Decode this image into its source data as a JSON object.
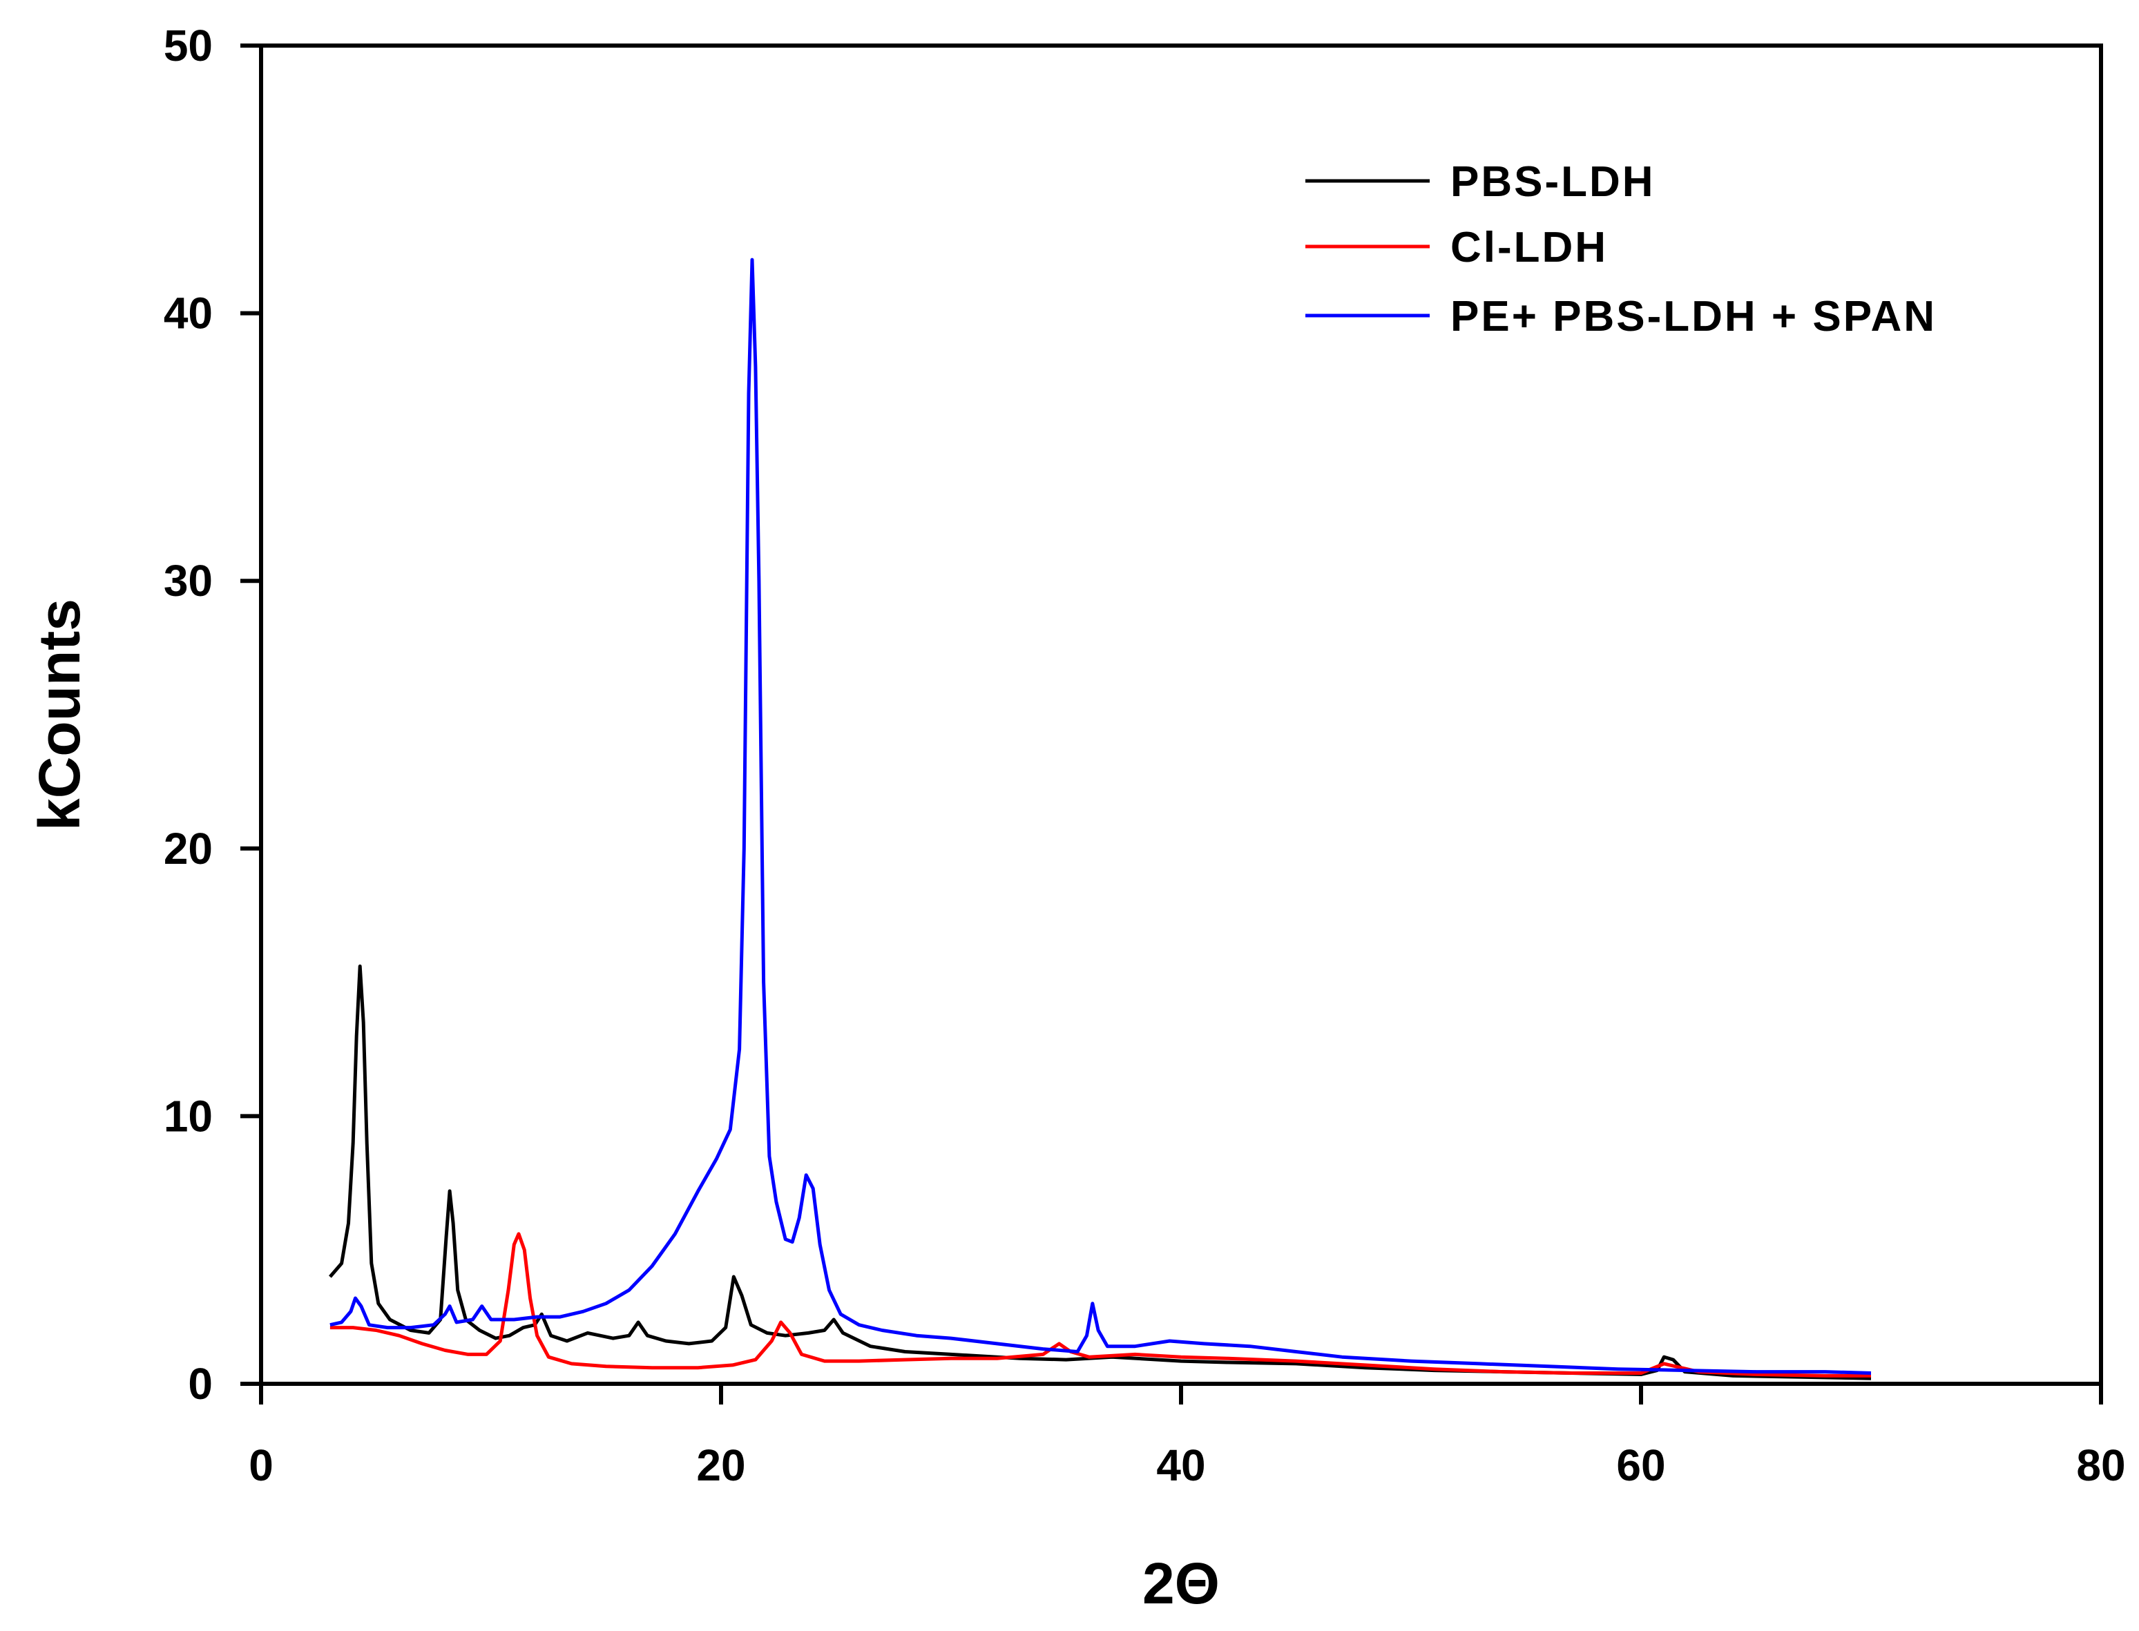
{
  "chart_data": {
    "type": "line",
    "title": "",
    "xlabel": "2Θ",
    "ylabel": "kCounts",
    "xlim": [
      0,
      80
    ],
    "ylim": [
      0,
      50
    ],
    "x_ticks": [
      0,
      20,
      40,
      60,
      80
    ],
    "y_ticks": [
      0,
      10,
      20,
      30,
      40,
      50
    ],
    "x_tick_labels": [
      "0",
      "20",
      "40",
      "60",
      "80"
    ],
    "y_tick_labels": [
      "0",
      "10",
      "20",
      "30",
      "40",
      "50"
    ],
    "grid": false,
    "legend_position": "top-right",
    "series": [
      {
        "name": "PBS-LDH",
        "color": "#000000",
        "points": [
          [
            3.0,
            4.0
          ],
          [
            3.5,
            4.5
          ],
          [
            3.8,
            6.0
          ],
          [
            4.0,
            9.0
          ],
          [
            4.15,
            13.0
          ],
          [
            4.3,
            15.6
          ],
          [
            4.45,
            13.5
          ],
          [
            4.6,
            9.0
          ],
          [
            4.8,
            4.5
          ],
          [
            5.1,
            3.0
          ],
          [
            5.6,
            2.4
          ],
          [
            6.5,
            2.0
          ],
          [
            7.3,
            1.9
          ],
          [
            7.8,
            2.4
          ],
          [
            8.05,
            5.5
          ],
          [
            8.2,
            7.2
          ],
          [
            8.35,
            6.0
          ],
          [
            8.55,
            3.5
          ],
          [
            8.9,
            2.4
          ],
          [
            9.5,
            2.0
          ],
          [
            10.2,
            1.7
          ],
          [
            10.8,
            1.8
          ],
          [
            11.4,
            2.1
          ],
          [
            11.9,
            2.2
          ],
          [
            12.2,
            2.6
          ],
          [
            12.6,
            1.8
          ],
          [
            13.3,
            1.6
          ],
          [
            14.2,
            1.9
          ],
          [
            15.3,
            1.7
          ],
          [
            16.0,
            1.8
          ],
          [
            16.4,
            2.3
          ],
          [
            16.8,
            1.8
          ],
          [
            17.6,
            1.6
          ],
          [
            18.6,
            1.5
          ],
          [
            19.6,
            1.6
          ],
          [
            20.2,
            2.1
          ],
          [
            20.55,
            4.0
          ],
          [
            20.9,
            3.3
          ],
          [
            21.3,
            2.2
          ],
          [
            22.0,
            1.9
          ],
          [
            22.8,
            1.8
          ],
          [
            23.8,
            1.9
          ],
          [
            24.5,
            2.0
          ],
          [
            24.9,
            2.4
          ],
          [
            25.3,
            1.9
          ],
          [
            26.5,
            1.4
          ],
          [
            28.0,
            1.2
          ],
          [
            30.0,
            1.1
          ],
          [
            33.0,
            0.95
          ],
          [
            35.0,
            0.9
          ],
          [
            37.0,
            1.0
          ],
          [
            40.0,
            0.85
          ],
          [
            42.0,
            0.8
          ],
          [
            45.0,
            0.75
          ],
          [
            48.0,
            0.6
          ],
          [
            51.0,
            0.5
          ],
          [
            54.0,
            0.45
          ],
          [
            57.0,
            0.4
          ],
          [
            60.0,
            0.35
          ],
          [
            60.7,
            0.5
          ],
          [
            61.0,
            1.0
          ],
          [
            61.4,
            0.9
          ],
          [
            61.9,
            0.45
          ],
          [
            64.0,
            0.3
          ],
          [
            67.0,
            0.25
          ],
          [
            70.0,
            0.2
          ]
        ]
      },
      {
        "name": "Cl-LDH",
        "color": "#ff0000",
        "points": [
          [
            3.0,
            2.1
          ],
          [
            4.0,
            2.1
          ],
          [
            5.0,
            2.0
          ],
          [
            6.0,
            1.8
          ],
          [
            7.0,
            1.5
          ],
          [
            8.0,
            1.25
          ],
          [
            9.0,
            1.1
          ],
          [
            9.8,
            1.1
          ],
          [
            10.4,
            1.6
          ],
          [
            10.75,
            3.5
          ],
          [
            11.0,
            5.2
          ],
          [
            11.2,
            5.6
          ],
          [
            11.45,
            5.0
          ],
          [
            11.7,
            3.2
          ],
          [
            12.0,
            1.8
          ],
          [
            12.5,
            1.0
          ],
          [
            13.5,
            0.75
          ],
          [
            15.0,
            0.65
          ],
          [
            17.0,
            0.6
          ],
          [
            19.0,
            0.6
          ],
          [
            20.5,
            0.7
          ],
          [
            21.5,
            0.9
          ],
          [
            22.2,
            1.6
          ],
          [
            22.6,
            2.3
          ],
          [
            23.0,
            1.9
          ],
          [
            23.5,
            1.1
          ],
          [
            24.5,
            0.85
          ],
          [
            26.0,
            0.85
          ],
          [
            28.0,
            0.9
          ],
          [
            30.0,
            0.95
          ],
          [
            32.0,
            0.95
          ],
          [
            34.0,
            1.1
          ],
          [
            34.7,
            1.5
          ],
          [
            35.2,
            1.2
          ],
          [
            36.0,
            1.0
          ],
          [
            38.0,
            1.1
          ],
          [
            40.0,
            1.0
          ],
          [
            42.0,
            0.95
          ],
          [
            45.0,
            0.85
          ],
          [
            48.0,
            0.7
          ],
          [
            51.0,
            0.55
          ],
          [
            54.0,
            0.45
          ],
          [
            57.0,
            0.4
          ],
          [
            60.0,
            0.4
          ],
          [
            61.0,
            0.75
          ],
          [
            61.5,
            0.65
          ],
          [
            62.5,
            0.45
          ],
          [
            65.0,
            0.35
          ],
          [
            68.0,
            0.3
          ],
          [
            70.0,
            0.3
          ]
        ]
      },
      {
        "name": "PE+ PBS-LDH + SPAN",
        "color": "#0000ff",
        "points": [
          [
            3.0,
            2.2
          ],
          [
            3.5,
            2.3
          ],
          [
            3.9,
            2.7
          ],
          [
            4.1,
            3.2
          ],
          [
            4.35,
            2.9
          ],
          [
            4.7,
            2.2
          ],
          [
            5.5,
            2.1
          ],
          [
            6.5,
            2.1
          ],
          [
            7.5,
            2.2
          ],
          [
            8.0,
            2.6
          ],
          [
            8.2,
            2.9
          ],
          [
            8.5,
            2.3
          ],
          [
            9.2,
            2.4
          ],
          [
            9.6,
            2.9
          ],
          [
            10.0,
            2.4
          ],
          [
            11.0,
            2.4
          ],
          [
            12.0,
            2.5
          ],
          [
            13.0,
            2.5
          ],
          [
            14.0,
            2.7
          ],
          [
            15.0,
            3.0
          ],
          [
            16.0,
            3.5
          ],
          [
            17.0,
            4.4
          ],
          [
            18.0,
            5.6
          ],
          [
            19.0,
            7.2
          ],
          [
            19.8,
            8.4
          ],
          [
            20.4,
            9.5
          ],
          [
            20.8,
            12.5
          ],
          [
            21.0,
            20.0
          ],
          [
            21.2,
            37.0
          ],
          [
            21.35,
            42.0
          ],
          [
            21.5,
            38.0
          ],
          [
            21.65,
            30.0
          ],
          [
            21.85,
            15.0
          ],
          [
            22.1,
            8.5
          ],
          [
            22.4,
            6.8
          ],
          [
            22.8,
            5.4
          ],
          [
            23.1,
            5.3
          ],
          [
            23.4,
            6.2
          ],
          [
            23.7,
            7.8
          ],
          [
            24.0,
            7.3
          ],
          [
            24.3,
            5.2
          ],
          [
            24.7,
            3.5
          ],
          [
            25.2,
            2.6
          ],
          [
            26.0,
            2.2
          ],
          [
            27.0,
            2.0
          ],
          [
            28.5,
            1.8
          ],
          [
            30.0,
            1.7
          ],
          [
            32.0,
            1.5
          ],
          [
            34.0,
            1.3
          ],
          [
            35.5,
            1.2
          ],
          [
            35.9,
            1.8
          ],
          [
            36.15,
            3.0
          ],
          [
            36.4,
            2.0
          ],
          [
            36.8,
            1.4
          ],
          [
            38.0,
            1.4
          ],
          [
            39.5,
            1.6
          ],
          [
            41.0,
            1.5
          ],
          [
            43.0,
            1.4
          ],
          [
            45.0,
            1.2
          ],
          [
            47.0,
            1.0
          ],
          [
            50.0,
            0.85
          ],
          [
            53.0,
            0.75
          ],
          [
            56.0,
            0.65
          ],
          [
            59.0,
            0.55
          ],
          [
            62.0,
            0.5
          ],
          [
            65.0,
            0.45
          ],
          [
            68.0,
            0.45
          ],
          [
            70.0,
            0.4
          ]
        ]
      }
    ]
  }
}
